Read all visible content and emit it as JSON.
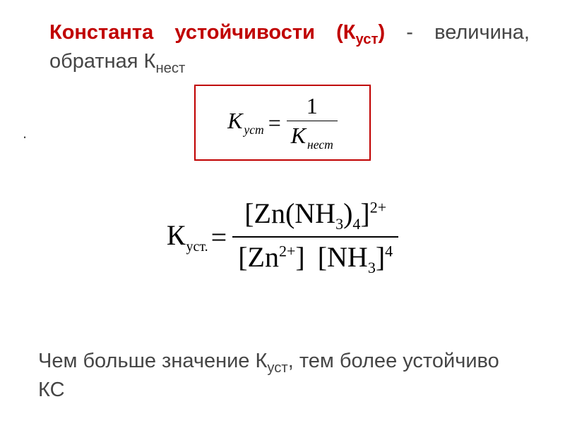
{
  "intro": {
    "term_main": "Константа  устойчивости",
    "term_sym_open": "  (К",
    "term_sym_sub": "уст",
    "term_sym_close": ")",
    "rest1": "  - величина, обратная К",
    "rest_sub": "нест"
  },
  "eq1": {
    "K": "К",
    "K_sub": "уст",
    "equals": "=",
    "num": "1",
    "den_K": "К",
    "den_sub": "нест",
    "box_color": "#c00000"
  },
  "dot": ".",
  "eq2": {
    "K": "К",
    "K_sub": "уст.",
    "equals": "=",
    "num": {
      "open": "[",
      "Zn": "Zn",
      "op2": "(",
      "N": "NH",
      "n3": "3",
      "cl2": ")",
      "n4": "4",
      "close": "]",
      "sup": "2+"
    },
    "den": {
      "a_open": "[",
      "Zn": "Zn",
      "Zn_sup": "2+",
      "a_close": "]",
      "b_open": "[",
      "N": "NH",
      "n3": "3",
      "b_close": "]",
      "b_sup": "4"
    }
  },
  "outro": {
    "t1": "Чем больше значение К",
    "t1_sub": "уст",
    "t2": ", тем более устойчиво КС"
  },
  "colors": {
    "text": "#454545",
    "accent": "#c00000",
    "black": "#000000",
    "bg": "#ffffff"
  }
}
